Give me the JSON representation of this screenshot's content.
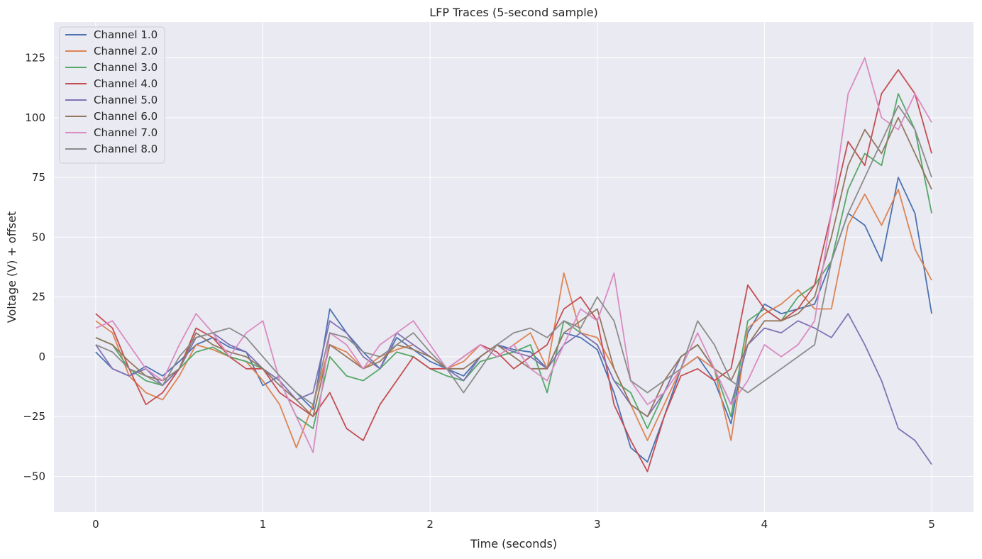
{
  "chart_data": {
    "type": "line",
    "title": "LFP Traces (5-second sample)",
    "xlabel": "Time (seconds)",
    "ylabel": "Voltage (V) + offset",
    "xlim": [
      -0.25,
      5.25
    ],
    "ylim": [
      -65,
      140
    ],
    "xticks": [
      0,
      1,
      2,
      3,
      4,
      5
    ],
    "xtick_labels": [
      "0",
      "1",
      "2",
      "3",
      "4",
      "5"
    ],
    "yticks": [
      -50,
      -25,
      0,
      25,
      50,
      75,
      100,
      125
    ],
    "ytick_labels": [
      "−50",
      "−25",
      "0",
      "25",
      "50",
      "75",
      "100",
      "125"
    ],
    "grid": true,
    "legend_position": "top-left",
    "background": "#eaeaf2",
    "x": [
      0,
      0.1,
      0.2,
      0.3,
      0.4,
      0.5,
      0.6,
      0.7,
      0.8,
      0.9,
      1.0,
      1.1,
      1.2,
      1.3,
      1.4,
      1.5,
      1.6,
      1.7,
      1.8,
      1.9,
      2.0,
      2.1,
      2.2,
      2.3,
      2.4,
      2.5,
      2.6,
      2.7,
      2.8,
      2.9,
      3.0,
      3.1,
      3.2,
      3.3,
      3.4,
      3.5,
      3.6,
      3.7,
      3.8,
      3.9,
      4.0,
      4.1,
      4.2,
      4.3,
      4.4,
      4.5,
      4.6,
      4.7,
      4.8,
      4.9,
      5.0
    ],
    "series": [
      {
        "name": "Channel 1.0",
        "color": "#4c72b0",
        "values": [
          2,
          -5,
          -8,
          -4,
          -8,
          -2,
          5,
          8,
          4,
          2,
          -12,
          -8,
          -15,
          -22,
          20,
          10,
          2,
          -5,
          8,
          3,
          -2,
          -5,
          -8,
          0,
          5,
          3,
          2,
          -5,
          10,
          8,
          3,
          -15,
          -38,
          -44,
          -25,
          -5,
          0,
          -10,
          -28,
          10,
          22,
          18,
          20,
          22,
          40,
          60,
          55,
          40,
          75,
          60,
          18
        ]
      },
      {
        "name": "Channel 2.0",
        "color": "#dd8452",
        "values": [
          15,
          10,
          -8,
          -15,
          -18,
          -8,
          5,
          3,
          0,
          -2,
          -10,
          -20,
          -38,
          -20,
          5,
          2,
          -5,
          0,
          3,
          5,
          0,
          -5,
          -2,
          5,
          0,
          5,
          10,
          -5,
          35,
          10,
          8,
          -5,
          -20,
          -35,
          -20,
          -5,
          0,
          -5,
          -35,
          12,
          18,
          22,
          28,
          20,
          20,
          55,
          68,
          55,
          70,
          45,
          32
        ]
      },
      {
        "name": "Channel 3.0",
        "color": "#55a868",
        "values": [
          8,
          5,
          -5,
          -10,
          -12,
          -5,
          2,
          4,
          0,
          -2,
          -5,
          -10,
          -25,
          -30,
          0,
          -8,
          -10,
          -5,
          2,
          0,
          -5,
          -8,
          -10,
          -2,
          0,
          2,
          5,
          -15,
          15,
          10,
          5,
          -10,
          -15,
          -30,
          -15,
          0,
          5,
          -5,
          -25,
          15,
          20,
          15,
          25,
          30,
          40,
          70,
          85,
          80,
          110,
          95,
          60
        ]
      },
      {
        "name": "Channel 4.0",
        "color": "#c44e52",
        "values": [
          18,
          12,
          -5,
          -20,
          -15,
          -5,
          12,
          8,
          0,
          -5,
          -5,
          -15,
          -20,
          -25,
          -15,
          -30,
          -35,
          -20,
          -10,
          0,
          -5,
          -5,
          0,
          5,
          2,
          -5,
          0,
          5,
          20,
          25,
          15,
          -20,
          -35,
          -48,
          -25,
          -8,
          -5,
          -10,
          -5,
          30,
          20,
          15,
          20,
          30,
          60,
          90,
          80,
          110,
          120,
          110,
          85
        ]
      },
      {
        "name": "Channel 5.0",
        "color": "#8172b3",
        "values": [
          5,
          -5,
          -8,
          -5,
          -12,
          -5,
          8,
          10,
          5,
          2,
          -5,
          -10,
          -18,
          -15,
          15,
          10,
          0,
          -5,
          10,
          5,
          0,
          -5,
          -10,
          0,
          5,
          2,
          0,
          -5,
          5,
          10,
          5,
          -10,
          -20,
          -25,
          -15,
          0,
          5,
          -5,
          -20,
          5,
          12,
          10,
          15,
          12,
          8,
          18,
          5,
          -10,
          -30,
          -35,
          -45
        ]
      },
      {
        "name": "Channel 6.0",
        "color": "#937860",
        "values": [
          8,
          5,
          -2,
          -8,
          -10,
          -5,
          10,
          5,
          2,
          0,
          -5,
          -12,
          -18,
          -25,
          5,
          0,
          -5,
          -2,
          5,
          3,
          0,
          -5,
          -5,
          0,
          5,
          0,
          -5,
          -5,
          10,
          15,
          20,
          -5,
          -20,
          -25,
          -10,
          0,
          5,
          -5,
          -10,
          5,
          15,
          15,
          18,
          25,
          50,
          80,
          95,
          85,
          100,
          85,
          70
        ]
      },
      {
        "name": "Channel 7.0",
        "color": "#da8bc3",
        "values": [
          12,
          15,
          5,
          -5,
          -10,
          5,
          18,
          10,
          0,
          10,
          15,
          -10,
          -25,
          -40,
          10,
          5,
          -5,
          5,
          10,
          15,
          5,
          -5,
          0,
          5,
          0,
          5,
          -5,
          -10,
          5,
          20,
          15,
          35,
          -10,
          -20,
          -15,
          -5,
          10,
          -5,
          -20,
          -10,
          5,
          0,
          5,
          15,
          60,
          110,
          125,
          100,
          95,
          110,
          98
        ]
      },
      {
        "name": "Channel 8.0",
        "color": "#8c8c8c",
        "values": [
          5,
          2,
          -5,
          -8,
          -12,
          0,
          8,
          10,
          12,
          8,
          0,
          -8,
          -15,
          -20,
          10,
          8,
          2,
          0,
          5,
          10,
          2,
          -5,
          -15,
          -5,
          5,
          10,
          12,
          8,
          15,
          12,
          25,
          15,
          -10,
          -15,
          -10,
          -5,
          15,
          5,
          -10,
          -15,
          -10,
          -5,
          0,
          5,
          40,
          60,
          75,
          90,
          105,
          95,
          75
        ]
      }
    ]
  }
}
